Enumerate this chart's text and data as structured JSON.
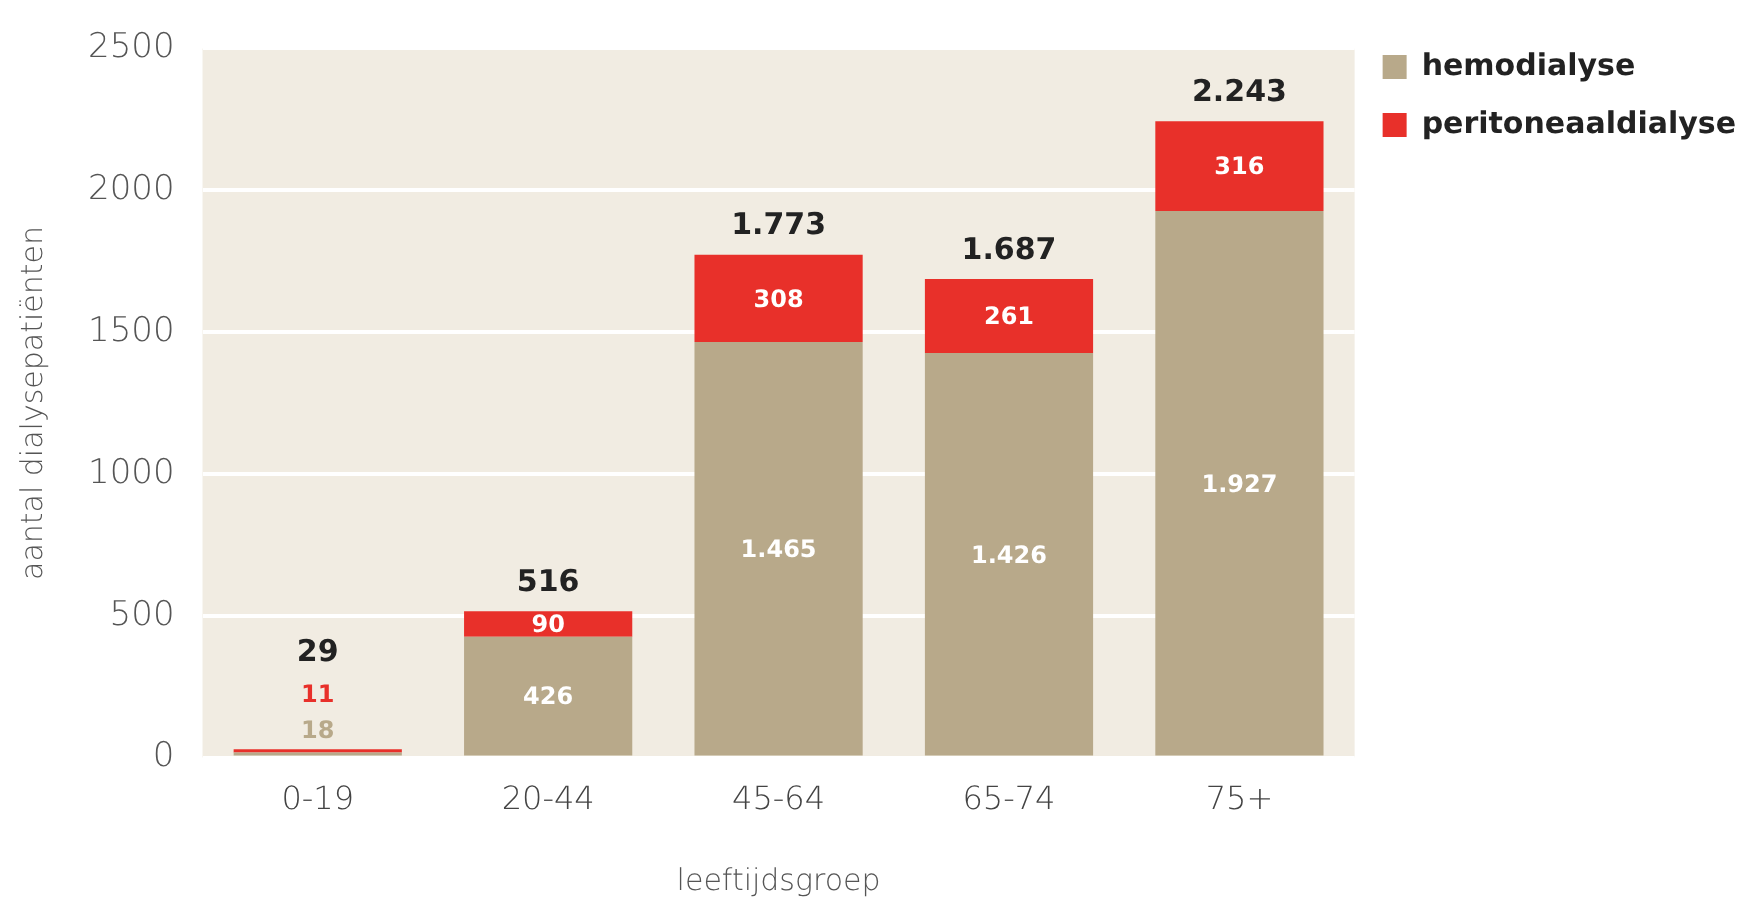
{
  "chart_data": {
    "type": "bar",
    "stacked": true,
    "xlabel": "leeftijdsgroep",
    "ylabel": "aantal dialysepatiënten",
    "categories": [
      "0-19",
      "20-44",
      "45-64",
      "65-74",
      "75+"
    ],
    "series": [
      {
        "name": "hemodialyse",
        "color": "#b8a98a",
        "values": [
          18,
          426,
          1465,
          1426,
          1927
        ],
        "value_labels": [
          "18",
          "426",
          "1.465",
          "1.426",
          "1.927"
        ]
      },
      {
        "name": "peritoneaaldialyse",
        "color": "#e8302a",
        "values": [
          11,
          90,
          308,
          261,
          316
        ],
        "value_labels": [
          "11",
          "90",
          "308",
          "261",
          "316"
        ]
      }
    ],
    "totals": [
      "29",
      "516",
      "1.773",
      "1.687",
      "2.243"
    ],
    "ylim": [
      0,
      2500
    ],
    "yticks": [
      0,
      500,
      1000,
      1500,
      2000,
      2500
    ],
    "grid": "y",
    "legend": "top right"
  }
}
